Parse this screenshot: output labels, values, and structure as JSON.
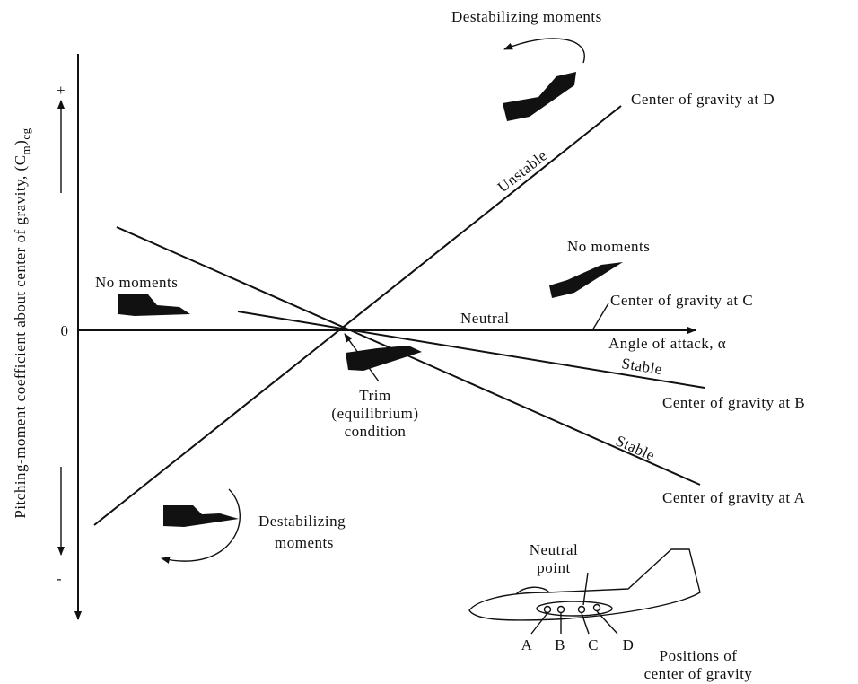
{
  "axes": {
    "zero": "0",
    "plus": "+",
    "minus": "-",
    "x_label": "Angle of attack, α",
    "y_label": {
      "text": "Pitching-moment coefficient about center of gravity, (C",
      "sub1": "m",
      "close": ")",
      "sub2": "cg"
    }
  },
  "top_moments": "Destabilizing moments",
  "line_d": {
    "label": "Center of gravity at D",
    "tag": "Unstable"
  },
  "right_moments": "No moments",
  "left_moments": "No moments",
  "line_c": {
    "label": "Center of gravity at C",
    "tag": "Neutral"
  },
  "line_b": {
    "label": "Center of gravity at B",
    "tag": "Stable"
  },
  "line_a": {
    "label": "Center of gravity at A",
    "tag": "Stable"
  },
  "trim": [
    "Trim",
    "(equilibrium)",
    "condition"
  ],
  "bottom_moments": [
    "Destabilizing",
    "moments"
  ],
  "inset": {
    "neutral_point": [
      "Neutral",
      "point"
    ],
    "points": [
      "A",
      "B",
      "C",
      "D"
    ],
    "caption": [
      "Positions of",
      "center of gravity"
    ]
  }
}
